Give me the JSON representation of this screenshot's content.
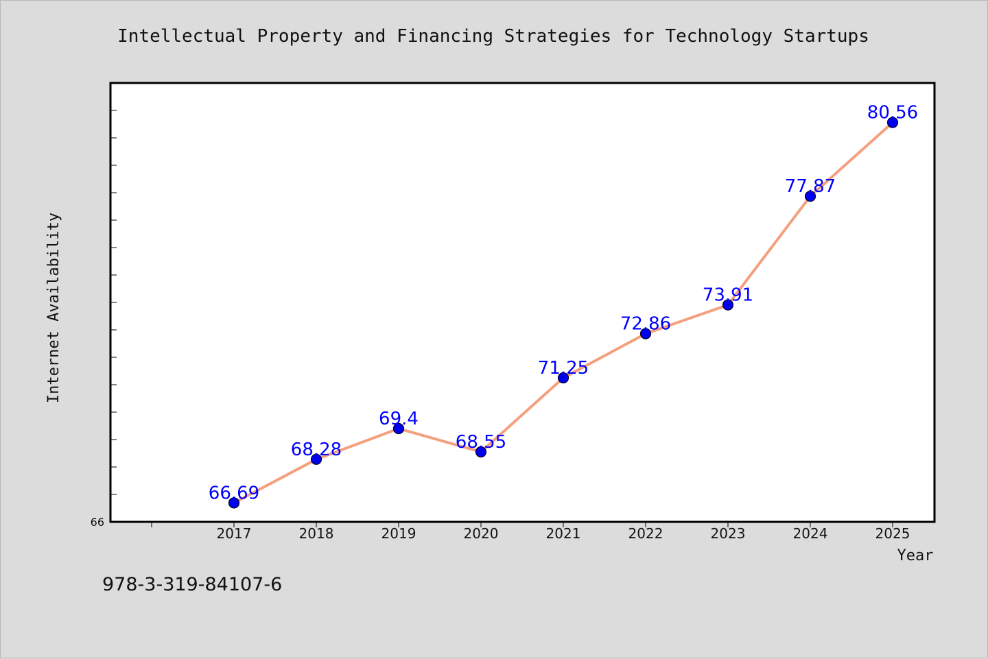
{
  "chart_data": {
    "type": "line",
    "title": "Intellectual Property and Financing Strategies for Technology Startups",
    "xlabel": "Year",
    "ylabel": "Internet Availability",
    "categories": [
      "2017",
      "2018",
      "2019",
      "2020",
      "2021",
      "2022",
      "2023",
      "2024",
      "2025"
    ],
    "values": [
      66.69,
      68.28,
      69.4,
      68.55,
      71.25,
      72.86,
      73.91,
      77.87,
      80.56
    ],
    "data_labels": [
      "66.69",
      "68.28",
      "69.4",
      "68.55",
      "71.25",
      "72.86",
      "73.91",
      "77.87",
      "80.56"
    ],
    "y_tick_label": "66",
    "ylim": [
      66,
      82.0
    ],
    "grid": false,
    "legend": "none",
    "line_color": "#f4a07e",
    "marker_color": "#0000ee",
    "label_color": "#0000ff"
  },
  "isbn": "978-3-319-84107-6"
}
